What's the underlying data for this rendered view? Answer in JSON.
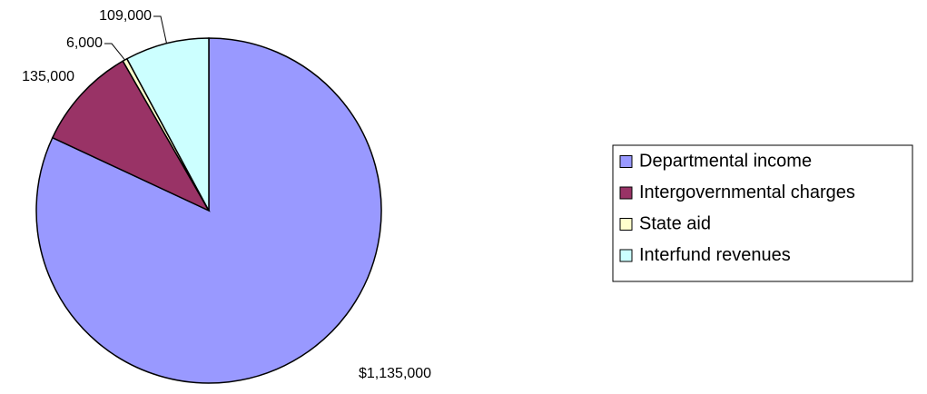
{
  "chart_data": {
    "type": "pie",
    "categories": [
      "Departmental income",
      "Intergovernmental charges",
      "State aid",
      "Interfund revenues"
    ],
    "values": [
      1135000,
      135000,
      6000,
      109000
    ],
    "value_labels": [
      "$1,135,000",
      "135,000",
      "6,000",
      "109,000"
    ],
    "colors": [
      "#9999ff",
      "#993366",
      "#ffffcc",
      "#ccffff"
    ],
    "legend": "right"
  }
}
